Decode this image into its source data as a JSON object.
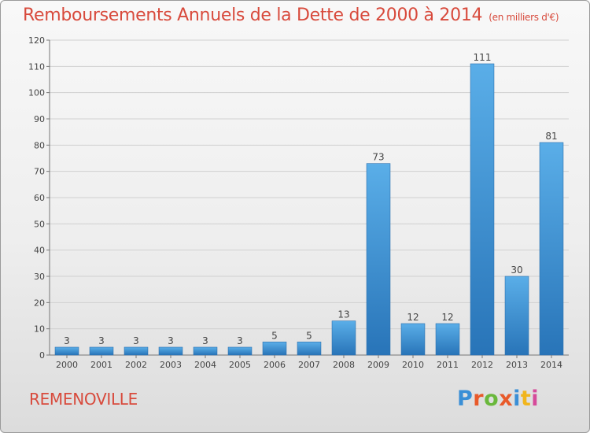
{
  "title": "Remboursements Annuels de la Dette de 2000 à 2014",
  "subtitle": "(en milliers d'€)",
  "commune": "REMENOVILLE",
  "logo": {
    "text": "Proxiti",
    "colors": [
      "#3a8fd6",
      "#e85a2a",
      "#6ab83c",
      "#e85a2a",
      "#3a8fd6",
      "#f1b51c",
      "#d64a9a"
    ]
  },
  "colors": {
    "bar": "#3f96dc",
    "bar_dark": "#2874b8",
    "title": "#d84a3c",
    "grid": "#d0d0d0"
  },
  "chart_data": {
    "type": "bar",
    "categories": [
      "2000",
      "2001",
      "2002",
      "2003",
      "2004",
      "2005",
      "2006",
      "2007",
      "2008",
      "2009",
      "2010",
      "2011",
      "2012",
      "2013",
      "2014"
    ],
    "values": [
      3,
      3,
      3,
      3,
      3,
      3,
      5,
      5,
      13,
      73,
      12,
      12,
      111,
      30,
      81
    ],
    "ylim": [
      0,
      120
    ],
    "yticks": [
      0,
      10,
      20,
      30,
      40,
      50,
      60,
      70,
      80,
      90,
      100,
      110,
      120
    ],
    "grid": true,
    "title": "Remboursements Annuels de la Dette de 2000 à 2014",
    "xlabel": "",
    "ylabel": ""
  }
}
